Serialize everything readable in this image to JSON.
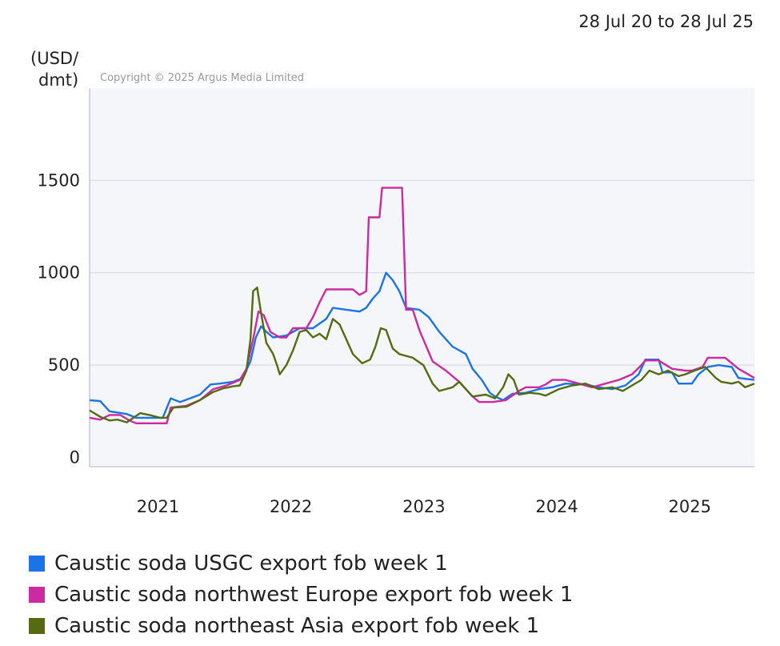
{
  "date_range": "28 Jul 20 to 28 Jul 25",
  "copyright": "Copyright © 2025 Argus Media Limited",
  "ylabel_line1": "(USD/",
  "ylabel_line2": "dmt)",
  "colors": {
    "usgc": "#1a73e8",
    "nwe": "#cc2aa0",
    "nea": "#556b12",
    "plot_bg": "#f5f6f9",
    "grid": "#dde0e6"
  },
  "chart_data": {
    "type": "line",
    "title": "",
    "xlabel": "",
    "ylabel": "(USD/dmt)",
    "xlim": [
      2020.57,
      2025.57
    ],
    "ylim": [
      -50,
      2000
    ],
    "y_ticks": [
      0,
      500,
      1000,
      1500
    ],
    "x_ticks": [
      {
        "label": "2021",
        "value": 2021.0
      },
      {
        "label": "2022",
        "value": 2022.0
      },
      {
        "label": "2023",
        "value": 2023.0
      },
      {
        "label": "2024",
        "value": 2024.0
      },
      {
        "label": "2025",
        "value": 2025.0
      }
    ],
    "grid": true,
    "legend_position": "bottom",
    "series": [
      {
        "key": "usgc",
        "name": "Caustic soda USGC export fob week 1",
        "points": [
          [
            2020.57,
            310
          ],
          [
            2020.65,
            305
          ],
          [
            2020.72,
            250
          ],
          [
            2020.85,
            235
          ],
          [
            2020.92,
            215
          ],
          [
            2021.0,
            215
          ],
          [
            2021.12,
            215
          ],
          [
            2021.18,
            320
          ],
          [
            2021.25,
            300
          ],
          [
            2021.4,
            340
          ],
          [
            2021.48,
            395
          ],
          [
            2021.55,
            400
          ],
          [
            2021.65,
            410
          ],
          [
            2021.72,
            430
          ],
          [
            2021.78,
            520
          ],
          [
            2021.82,
            650
          ],
          [
            2021.86,
            710
          ],
          [
            2021.9,
            680
          ],
          [
            2021.95,
            650
          ],
          [
            2022.05,
            660
          ],
          [
            2022.15,
            700
          ],
          [
            2022.25,
            700
          ],
          [
            2022.35,
            750
          ],
          [
            2022.4,
            810
          ],
          [
            2022.5,
            800
          ],
          [
            2022.6,
            790
          ],
          [
            2022.65,
            810
          ],
          [
            2022.7,
            860
          ],
          [
            2022.75,
            900
          ],
          [
            2022.8,
            1000
          ],
          [
            2022.85,
            960
          ],
          [
            2022.9,
            900
          ],
          [
            2022.95,
            810
          ],
          [
            2023.05,
            800
          ],
          [
            2023.12,
            760
          ],
          [
            2023.2,
            680
          ],
          [
            2023.3,
            600
          ],
          [
            2023.4,
            560
          ],
          [
            2023.45,
            480
          ],
          [
            2023.52,
            420
          ],
          [
            2023.58,
            350
          ],
          [
            2023.62,
            330
          ],
          [
            2023.68,
            310
          ],
          [
            2023.75,
            345
          ],
          [
            2023.85,
            350
          ],
          [
            2023.95,
            370
          ],
          [
            2024.05,
            380
          ],
          [
            2024.15,
            400
          ],
          [
            2024.3,
            395
          ],
          [
            2024.4,
            380
          ],
          [
            2024.5,
            370
          ],
          [
            2024.6,
            390
          ],
          [
            2024.7,
            450
          ],
          [
            2024.75,
            530
          ],
          [
            2024.85,
            530
          ],
          [
            2024.88,
            460
          ],
          [
            2024.95,
            460
          ],
          [
            2025.0,
            400
          ],
          [
            2025.1,
            400
          ],
          [
            2025.15,
            450
          ],
          [
            2025.22,
            490
          ],
          [
            2025.3,
            500
          ],
          [
            2025.4,
            490
          ],
          [
            2025.45,
            430
          ],
          [
            2025.57,
            420
          ]
        ]
      },
      {
        "key": "nwe",
        "name": "Caustic soda northwest Europe export fob week 1",
        "points": [
          [
            2020.57,
            215
          ],
          [
            2020.65,
            205
          ],
          [
            2020.72,
            230
          ],
          [
            2020.8,
            230
          ],
          [
            2020.87,
            200
          ],
          [
            2020.92,
            185
          ],
          [
            2021.0,
            185
          ],
          [
            2021.08,
            185
          ],
          [
            2021.15,
            185
          ],
          [
            2021.18,
            270
          ],
          [
            2021.3,
            280
          ],
          [
            2021.4,
            310
          ],
          [
            2021.5,
            370
          ],
          [
            2021.6,
            390
          ],
          [
            2021.7,
            420
          ],
          [
            2021.75,
            480
          ],
          [
            2021.8,
            640
          ],
          [
            2021.84,
            790
          ],
          [
            2021.88,
            770
          ],
          [
            2021.93,
            680
          ],
          [
            2022.0,
            650
          ],
          [
            2022.05,
            650
          ],
          [
            2022.1,
            700
          ],
          [
            2022.2,
            700
          ],
          [
            2022.25,
            760
          ],
          [
            2022.3,
            840
          ],
          [
            2022.35,
            910
          ],
          [
            2022.45,
            910
          ],
          [
            2022.55,
            910
          ],
          [
            2022.6,
            880
          ],
          [
            2022.65,
            900
          ],
          [
            2022.67,
            1300
          ],
          [
            2022.75,
            1300
          ],
          [
            2022.77,
            1460
          ],
          [
            2022.83,
            1460
          ],
          [
            2022.92,
            1460
          ],
          [
            2022.95,
            800
          ],
          [
            2023.0,
            800
          ],
          [
            2023.05,
            690
          ],
          [
            2023.15,
            520
          ],
          [
            2023.25,
            470
          ],
          [
            2023.35,
            410
          ],
          [
            2023.45,
            330
          ],
          [
            2023.5,
            300
          ],
          [
            2023.6,
            300
          ],
          [
            2023.7,
            310
          ],
          [
            2023.8,
            360
          ],
          [
            2023.85,
            380
          ],
          [
            2023.95,
            380
          ],
          [
            2024.0,
            395
          ],
          [
            2024.05,
            420
          ],
          [
            2024.15,
            420
          ],
          [
            2024.25,
            400
          ],
          [
            2024.35,
            380
          ],
          [
            2024.45,
            400
          ],
          [
            2024.55,
            420
          ],
          [
            2024.65,
            450
          ],
          [
            2024.72,
            500
          ],
          [
            2024.75,
            525
          ],
          [
            2024.85,
            525
          ],
          [
            2024.95,
            480
          ],
          [
            2025.05,
            470
          ],
          [
            2025.1,
            470
          ],
          [
            2025.18,
            490
          ],
          [
            2025.22,
            540
          ],
          [
            2025.35,
            540
          ],
          [
            2025.45,
            480
          ],
          [
            2025.57,
            430
          ]
        ]
      },
      {
        "key": "nea",
        "name": "Caustic soda northeast Asia export fob week 1",
        "points": [
          [
            2020.57,
            255
          ],
          [
            2020.65,
            220
          ],
          [
            2020.72,
            200
          ],
          [
            2020.78,
            205
          ],
          [
            2020.85,
            190
          ],
          [
            2020.9,
            215
          ],
          [
            2020.95,
            240
          ],
          [
            2021.02,
            230
          ],
          [
            2021.1,
            215
          ],
          [
            2021.15,
            215
          ],
          [
            2021.2,
            270
          ],
          [
            2021.3,
            275
          ],
          [
            2021.4,
            310
          ],
          [
            2021.5,
            355
          ],
          [
            2021.58,
            375
          ],
          [
            2021.65,
            385
          ],
          [
            2021.7,
            390
          ],
          [
            2021.75,
            470
          ],
          [
            2021.78,
            640
          ],
          [
            2021.8,
            900
          ],
          [
            2021.83,
            920
          ],
          [
            2021.86,
            780
          ],
          [
            2021.9,
            620
          ],
          [
            2021.95,
            560
          ],
          [
            2021.98,
            500
          ],
          [
            2022.0,
            450
          ],
          [
            2022.05,
            500
          ],
          [
            2022.1,
            580
          ],
          [
            2022.15,
            680
          ],
          [
            2022.2,
            690
          ],
          [
            2022.25,
            650
          ],
          [
            2022.3,
            670
          ],
          [
            2022.35,
            640
          ],
          [
            2022.4,
            750
          ],
          [
            2022.45,
            720
          ],
          [
            2022.5,
            640
          ],
          [
            2022.55,
            560
          ],
          [
            2022.62,
            510
          ],
          [
            2022.68,
            530
          ],
          [
            2022.72,
            600
          ],
          [
            2022.76,
            700
          ],
          [
            2022.8,
            690
          ],
          [
            2022.85,
            590
          ],
          [
            2022.9,
            560
          ],
          [
            2022.95,
            550
          ],
          [
            2023.0,
            540
          ],
          [
            2023.08,
            500
          ],
          [
            2023.15,
            400
          ],
          [
            2023.2,
            360
          ],
          [
            2023.3,
            380
          ],
          [
            2023.35,
            410
          ],
          [
            2023.45,
            330
          ],
          [
            2023.55,
            340
          ],
          [
            2023.62,
            320
          ],
          [
            2023.68,
            380
          ],
          [
            2023.72,
            450
          ],
          [
            2023.76,
            420
          ],
          [
            2023.8,
            340
          ],
          [
            2023.88,
            350
          ],
          [
            2023.95,
            345
          ],
          [
            2024.0,
            335
          ],
          [
            2024.1,
            370
          ],
          [
            2024.2,
            390
          ],
          [
            2024.3,
            400
          ],
          [
            2024.4,
            370
          ],
          [
            2024.5,
            380
          ],
          [
            2024.58,
            360
          ],
          [
            2024.65,
            390
          ],
          [
            2024.72,
            420
          ],
          [
            2024.78,
            470
          ],
          [
            2024.85,
            450
          ],
          [
            2024.92,
            470
          ],
          [
            2025.0,
            440
          ],
          [
            2025.05,
            450
          ],
          [
            2025.12,
            470
          ],
          [
            2025.2,
            490
          ],
          [
            2025.28,
            430
          ],
          [
            2025.32,
            410
          ],
          [
            2025.4,
            400
          ],
          [
            2025.45,
            410
          ],
          [
            2025.5,
            380
          ],
          [
            2025.57,
            400
          ]
        ]
      }
    ]
  }
}
